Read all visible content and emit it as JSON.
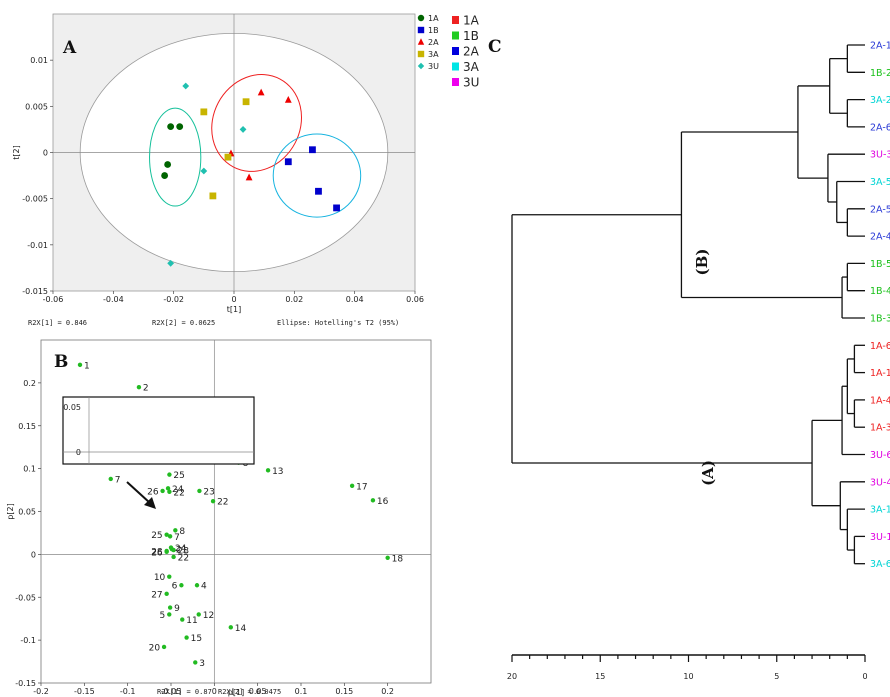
{
  "chart_data": [
    {
      "panel": "A",
      "type": "scatter",
      "xlabel": "t[1]",
      "ylabel": "t[2]",
      "xlim": [
        -0.06,
        0.06
      ],
      "ylim": [
        -0.015,
        0.015
      ],
      "x_ticks": [
        "-0.06",
        "-0.04",
        "-0.02",
        "0",
        "0.02",
        "0.04",
        "0.06"
      ],
      "y_ticks": [
        "0.01",
        "0.005",
        "0",
        "-0.005",
        "-0.01",
        "-0.015"
      ],
      "footer": [
        "R2X[1] = 0.846",
        "R2X[2] = 0.0625",
        "Ellipse: Hotelling's T2 (95%)"
      ],
      "legend_placement": "top-right",
      "grid": false,
      "series": [
        {
          "name": "1A",
          "marker": "circle",
          "color": "#006400",
          "points": [
            [
              -0.021,
              0.0028
            ],
            [
              -0.018,
              0.0028
            ],
            [
              -0.022,
              -0.0013
            ],
            [
              -0.023,
              -0.0025
            ]
          ]
        },
        {
          "name": "1B",
          "marker": "square",
          "color": "#0000cc",
          "points": [
            [
              0.026,
              0.0003
            ],
            [
              0.018,
              -0.001
            ],
            [
              0.028,
              -0.0042
            ],
            [
              0.034,
              -0.006
            ]
          ]
        },
        {
          "name": "2A",
          "marker": "triangle",
          "color": "#ee0000",
          "points": [
            [
              0.009,
              0.0065
            ],
            [
              0.018,
              0.0057
            ],
            [
              0.005,
              -0.0027
            ],
            [
              -0.001,
              -0.0001
            ]
          ]
        },
        {
          "name": "3A",
          "marker": "square",
          "color": "#c8b400",
          "points": [
            [
              -0.01,
              0.0044
            ],
            [
              0.004,
              0.0055
            ],
            [
              -0.002,
              -0.0005
            ],
            [
              -0.007,
              -0.0047
            ]
          ]
        },
        {
          "name": "3U",
          "marker": "diamond",
          "color": "#20c0b0",
          "points": [
            [
              -0.016,
              0.0072
            ],
            [
              0.003,
              0.0025
            ],
            [
              -0.01,
              -0.002
            ],
            [
              -0.021,
              -0.012
            ]
          ]
        }
      ],
      "big_legend": [
        {
          "label": "1A",
          "color": "#ee2222"
        },
        {
          "label": "1B",
          "color": "#22cc22"
        },
        {
          "label": "2A",
          "color": "#0000dd"
        },
        {
          "label": "3A",
          "color": "#00e5e5"
        },
        {
          "label": "3U",
          "color": "#ee00ee"
        }
      ]
    },
    {
      "panel": "B",
      "type": "scatter",
      "xlabel": "p[1]",
      "ylabel": "p[2]",
      "xlim": [
        -0.2,
        0.25
      ],
      "ylim": [
        -0.15,
        0.25
      ],
      "x_ticks": [
        "-0.2",
        "-0.15",
        "-0.1",
        "-0.05",
        "0",
        "0.05",
        "0.1",
        "0.15",
        "0.2"
      ],
      "y_ticks": [
        "0.2",
        "0.15",
        "0.1",
        "0.05",
        "0",
        "-0.05",
        "-0.1",
        "-0.15"
      ],
      "footer": [
        "R2X[1] = 0.87",
        "R2X[2] = 0.0475"
      ],
      "color": "#22bb22",
      "points": [
        {
          "label": "1",
          "x": -0.155,
          "y": 0.221
        },
        {
          "label": "2",
          "x": -0.087,
          "y": 0.195
        },
        {
          "label": "3",
          "x": -0.022,
          "y": -0.126
        },
        {
          "label": "4",
          "x": -0.02,
          "y": -0.036
        },
        {
          "label": "5",
          "x": -0.052,
          "y": -0.07
        },
        {
          "label": "6",
          "x": -0.038,
          "y": -0.036
        },
        {
          "label": "7",
          "x": -0.051,
          "y": 0.021
        },
        {
          "label": "8",
          "x": -0.045,
          "y": 0.028
        },
        {
          "label": "9",
          "x": -0.051,
          "y": -0.062
        },
        {
          "label": "10",
          "x": -0.052,
          "y": -0.026
        },
        {
          "label": "11",
          "x": -0.037,
          "y": -0.076
        },
        {
          "label": "12",
          "x": -0.018,
          "y": -0.07
        },
        {
          "label": "13",
          "x": 0.062,
          "y": 0.098
        },
        {
          "label": "14",
          "x": 0.019,
          "y": -0.085
        },
        {
          "label": "15",
          "x": -0.032,
          "y": -0.097
        },
        {
          "label": "16",
          "x": 0.183,
          "y": 0.063
        },
        {
          "label": "17",
          "x": 0.159,
          "y": 0.08
        },
        {
          "label": "18",
          "x": 0.2,
          "y": -0.004
        },
        {
          "label": "20",
          "x": -0.058,
          "y": -0.108
        },
        {
          "label": "21",
          "x": -0.049,
          "y": 0.006
        },
        {
          "label": "22",
          "x": -0.047,
          "y": -0.003
        },
        {
          "label": "23",
          "x": -0.047,
          "y": 0.005
        },
        {
          "label": "24",
          "x": -0.05,
          "y": 0.008
        },
        {
          "label": "25",
          "x": -0.055,
          "y": 0.023
        },
        {
          "label": "26",
          "x": -0.055,
          "y": 0.003
        },
        {
          "label": "27",
          "x": -0.055,
          "y": -0.046
        },
        {
          "label": "28",
          "x": -0.055,
          "y": 0.004
        },
        {
          "label": "8",
          "x": 0.028,
          "y": 0.107
        }
      ],
      "inset": {
        "y_ticks": [
          "0.05",
          "0"
        ],
        "points": [
          {
            "label": "7",
            "x": -0.085,
            "y": 0.088
          },
          {
            "label": "25",
            "x": -0.042,
            "y": 0.093
          },
          {
            "label": "24",
            "x": -0.043,
            "y": 0.077
          },
          {
            "label": "23",
            "x": -0.02,
            "y": 0.074
          },
          {
            "label": "26",
            "x": -0.047,
            "y": 0.074
          },
          {
            "label": "22",
            "x": -0.042,
            "y": 0.073
          },
          {
            "label": "22",
            "x": -0.01,
            "y": 0.062
          }
        ]
      }
    },
    {
      "panel": "C",
      "type": "dendrogram",
      "x_ticks": [
        "20",
        "15",
        "10",
        "5",
        "0"
      ],
      "xlim": [
        20,
        0
      ],
      "cluster_labels": [
        "(B)",
        "(A)"
      ],
      "leaves": [
        {
          "label": "2A-1",
          "color": "#2a3ad6"
        },
        {
          "label": "1B-2",
          "color": "#18c018"
        },
        {
          "label": "3A-2",
          "color": "#00d4d4"
        },
        {
          "label": "2A-6",
          "color": "#2a3ad6"
        },
        {
          "label": "3U-3",
          "color": "#e000e0"
        },
        {
          "label": "3A-5",
          "color": "#00d4d4"
        },
        {
          "label": "2A-5",
          "color": "#2a3ad6"
        },
        {
          "label": "2A-4",
          "color": "#2a3ad6"
        },
        {
          "label": "1B-5",
          "color": "#18c018"
        },
        {
          "label": "1B-4",
          "color": "#18c018"
        },
        {
          "label": "1B-3",
          "color": "#18c018"
        },
        {
          "label": "1A-6",
          "color": "#ee2222"
        },
        {
          "label": "1A-1",
          "color": "#ee2222"
        },
        {
          "label": "1A-4",
          "color": "#ee2222"
        },
        {
          "label": "1A-3",
          "color": "#ee2222"
        },
        {
          "label": "3U-6",
          "color": "#e000e0"
        },
        {
          "label": "3U-4",
          "color": "#e000e0"
        },
        {
          "label": "3A-1",
          "color": "#00d4d4"
        },
        {
          "label": "3U-1",
          "color": "#e000e0"
        },
        {
          "label": "3A-6",
          "color": "#00d4d4"
        }
      ],
      "merges": [
        {
          "a": "L0",
          "b": "L1",
          "h": 1.0
        },
        {
          "a": "L2",
          "b": "L3",
          "h": 1.0
        },
        {
          "a": "M0",
          "b": "M1",
          "h": 2.0
        },
        {
          "a": "L6",
          "b": "L7",
          "h": 1.0
        },
        {
          "a": "L5",
          "b": "M3",
          "h": 1.6
        },
        {
          "a": "L4",
          "b": "M4",
          "h": 2.1
        },
        {
          "a": "M2",
          "b": "M5",
          "h": 3.8
        },
        {
          "a": "L8",
          "b": "L9",
          "h": 1.0
        },
        {
          "a": "M7",
          "b": "L10",
          "h": 1.3
        },
        {
          "a": "M6",
          "b": "M8",
          "h": 10.4
        },
        {
          "a": "L11",
          "b": "L12",
          "h": 0.6
        },
        {
          "a": "L13",
          "b": "L14",
          "h": 0.6
        },
        {
          "a": "M10",
          "b": "M11",
          "h": 1.0
        },
        {
          "a": "M12",
          "b": "L15",
          "h": 1.3
        },
        {
          "a": "L18",
          "b": "L19",
          "h": 0.6
        },
        {
          "a": "L17",
          "b": "M14",
          "h": 1.0
        },
        {
          "a": "L16",
          "b": "M15",
          "h": 1.4
        },
        {
          "a": "M13",
          "b": "M16",
          "h": 3.0
        },
        {
          "a": "M9",
          "b": "M17",
          "h": 20.0
        }
      ]
    }
  ],
  "labels": {
    "panel_a": "A",
    "panel_b": "B",
    "panel_c": "C",
    "cluster_b": "(B)",
    "cluster_a": "(A)"
  }
}
